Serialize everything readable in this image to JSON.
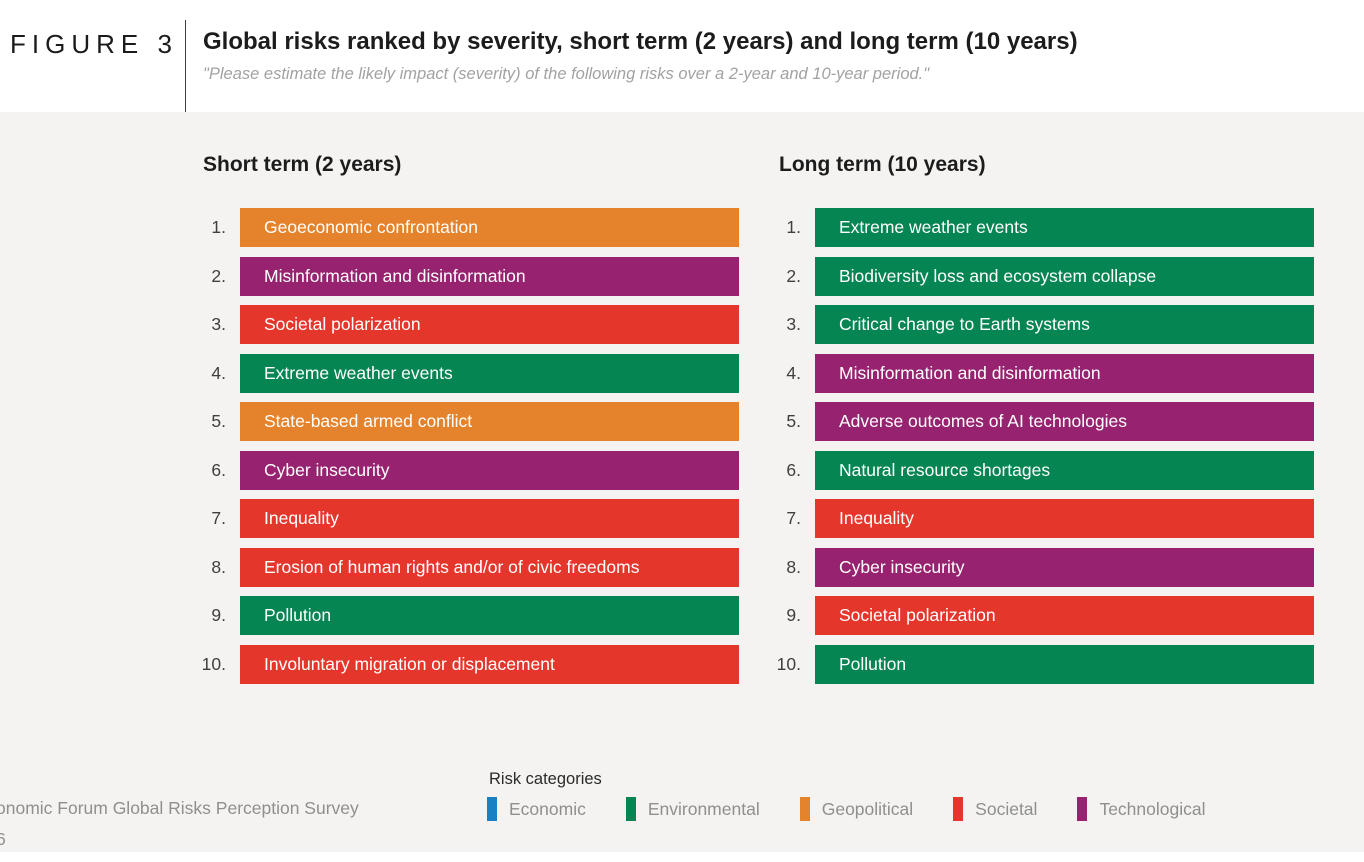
{
  "figure": {
    "label": "FIGURE 3",
    "title": "Global risks ranked by severity, short term (2 years) and long term (10 years)",
    "subtitle": "\"Please estimate the likely impact (severity) of the following risks over a 2-year and 10-year period.\""
  },
  "risk_categories": {
    "Economic": "#1a80c4",
    "Environmental": "#048551",
    "Geopolitical": "#e5832c",
    "Societal": "#e5362c",
    "Technological": "#97226f"
  },
  "chart_data": {
    "type": "table",
    "title": "Global risks ranked by severity, short term (2 years) and long term (10 years)",
    "columns": [
      {
        "heading": "Short term (2 years)",
        "items": [
          {
            "rank": "1.",
            "label": "Geoeconomic confrontation",
            "category": "Geopolitical"
          },
          {
            "rank": "2.",
            "label": "Misinformation and disinformation",
            "category": "Technological"
          },
          {
            "rank": "3.",
            "label": "Societal polarization",
            "category": "Societal"
          },
          {
            "rank": "4.",
            "label": "Extreme weather events",
            "category": "Environmental"
          },
          {
            "rank": "5.",
            "label": "State-based armed conflict",
            "category": "Geopolitical"
          },
          {
            "rank": "6.",
            "label": "Cyber insecurity",
            "category": "Technological"
          },
          {
            "rank": "7.",
            "label": "Inequality",
            "category": "Societal"
          },
          {
            "rank": "8.",
            "label": "Erosion of human rights and/or of civic freedoms",
            "category": "Societal"
          },
          {
            "rank": "9.",
            "label": "Pollution",
            "category": "Environmental"
          },
          {
            "rank": "10.",
            "label": "Involuntary migration or displacement",
            "category": "Societal"
          }
        ]
      },
      {
        "heading": "Long term (10 years)",
        "items": [
          {
            "rank": "1.",
            "label": "Extreme weather events",
            "category": "Environmental"
          },
          {
            "rank": "2.",
            "label": "Biodiversity loss and ecosystem collapse",
            "category": "Environmental"
          },
          {
            "rank": "3.",
            "label": "Critical change to Earth systems",
            "category": "Environmental"
          },
          {
            "rank": "4.",
            "label": "Misinformation and disinformation",
            "category": "Technological"
          },
          {
            "rank": "5.",
            "label": "Adverse outcomes of AI technologies",
            "category": "Technological"
          },
          {
            "rank": "6.",
            "label": "Natural resource shortages",
            "category": "Environmental"
          },
          {
            "rank": "7.",
            "label": "Inequality",
            "category": "Societal"
          },
          {
            "rank": "8.",
            "label": "Cyber insecurity",
            "category": "Technological"
          },
          {
            "rank": "9.",
            "label": "Societal polarization",
            "category": "Societal"
          },
          {
            "rank": "10.",
            "label": "Pollution",
            "category": "Environmental"
          }
        ]
      }
    ]
  },
  "legend": {
    "title": "Risk categories",
    "items": [
      {
        "label": "Economic",
        "color": "#1a80c4"
      },
      {
        "label": "Environmental",
        "color": "#048551"
      },
      {
        "label": "Geopolitical",
        "color": "#e5832c"
      },
      {
        "label": "Societal",
        "color": "#e5362c"
      },
      {
        "label": "Technological",
        "color": "#97226f"
      }
    ]
  },
  "source": {
    "line1": "onomic Forum Global Risks Perception Survey",
    "line2": "6"
  }
}
